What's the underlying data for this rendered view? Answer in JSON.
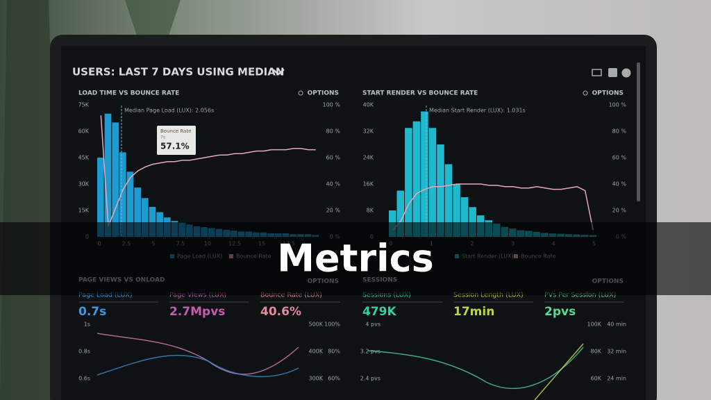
{
  "overlay_title": "Metrics",
  "header": {
    "title": "USERS: LAST 7 DAYS USING MEDIAN"
  },
  "panels": [
    {
      "title": "LOAD TIME VS BOUNCE RATE",
      "options": "OPTIONS",
      "annotation": "Median Page Load (LUX): 2.056s",
      "tooltip": {
        "label": "Bounce Rate",
        "sub": "7s",
        "value": "57.1%"
      },
      "yticks": [
        "75K",
        "60K",
        "45K",
        "30K",
        "15K",
        "0"
      ],
      "y2ticks": [
        "100 %",
        "80 %",
        "60 %",
        "40 %",
        "20 %",
        "0 %"
      ],
      "xticks": [
        "0",
        "2.5",
        "5",
        "7.5",
        "10",
        "12.5",
        "15",
        "17.5"
      ],
      "legend": [
        "Page Load (LUX)",
        "Bounce Rate"
      ],
      "ylim": [
        0,
        75000
      ],
      "y2lim": [
        0,
        100
      ],
      "bars": [
        45000,
        70000,
        65000,
        48000,
        37000,
        28000,
        22000,
        17000,
        14000,
        11000,
        9000,
        8000,
        7000,
        6000,
        5500,
        5000,
        4500,
        4000,
        3500,
        3000,
        3000,
        2500,
        2500,
        2000,
        2000,
        2000,
        1500,
        1500,
        1500,
        1000
      ],
      "line": [
        92,
        8,
        22,
        36,
        45,
        50,
        53,
        55,
        56,
        57,
        57,
        58,
        58,
        59,
        60,
        61,
        62,
        62,
        63,
        63,
        64,
        65,
        65,
        66,
        66,
        66,
        67,
        67,
        66,
        66
      ]
    },
    {
      "title": "START RENDER VS BOUNCE RATE",
      "options": "OPTIONS",
      "annotation": "Median Start Render (LUX): 1.031s",
      "yticks": [
        "40K",
        "32K",
        "24K",
        "16K",
        "8K",
        "0"
      ],
      "y2ticks": [
        "100 %",
        "80 %",
        "60 %",
        "40 %",
        "20 %",
        "0 %"
      ],
      "xticks": [
        "0",
        "1",
        "2",
        "3",
        "4",
        "5"
      ],
      "legend": [
        "Start Render (LUX)",
        "Bounce Rate"
      ],
      "ylim": [
        0,
        40000
      ],
      "y2lim": [
        0,
        100
      ],
      "bars": [
        8000,
        14000,
        33000,
        35000,
        38000,
        33000,
        28000,
        22000,
        16000,
        12000,
        9000,
        6500,
        5000,
        4000,
        3000,
        2500,
        2000,
        1800,
        1500,
        1200,
        1000,
        900,
        800,
        700,
        600,
        500
      ],
      "line": [
        5,
        12,
        25,
        33,
        36,
        38,
        38,
        39,
        40,
        40,
        40,
        40,
        39,
        39,
        38,
        38,
        37,
        37,
        38,
        37,
        36,
        36,
        37,
        38,
        35,
        5
      ]
    }
  ],
  "lower": [
    {
      "title": "PAGE VIEWS VS ONLOAD",
      "options": "OPTIONS",
      "metrics": [
        {
          "label": "Page Load (LUX)",
          "value": "0.7s"
        },
        {
          "label": "Page Views (LUX)",
          "value": "2.7Mpvs"
        },
        {
          "label": "Bounce Rate (LUX)",
          "value": "40.6%"
        }
      ],
      "left_ticks": [
        "1s",
        "0.8s",
        "0.6s"
      ],
      "right_ticks": [
        "500K",
        "400K",
        "300K"
      ],
      "right2_ticks": [
        "100%",
        "80%",
        "60%"
      ]
    },
    {
      "title": "SESSIONS",
      "options": "OPTIONS",
      "metrics": [
        {
          "label": "Sessions (LUX)",
          "value": "479K"
        },
        {
          "label": "Session Length (LUX)",
          "value": "17min"
        },
        {
          "label": "PVs Per Session (LUX)",
          "value": "2pvs"
        }
      ],
      "left_ticks": [
        "4 pvs",
        "3.2 pvs",
        "2.4 pvs"
      ],
      "right_ticks": [
        "100K",
        "80K",
        "60K"
      ],
      "right2_ticks": [
        "40 min",
        "32 min",
        "24 min"
      ]
    }
  ]
}
